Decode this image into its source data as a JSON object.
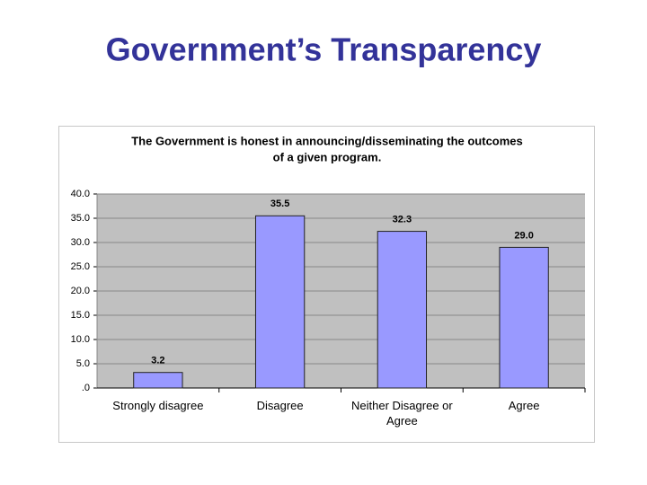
{
  "page_title": "Government’s Transparency",
  "chart_data": {
    "type": "bar",
    "title": [
      "The Government is honest in announcing/disseminating the outcomes",
      "of a given program."
    ],
    "categories": [
      "Strongly disagree",
      "Disagree",
      "Neither Disagree or Agree",
      "Agree"
    ],
    "values": [
      3.2,
      35.5,
      32.3,
      29.0
    ],
    "value_labels": [
      "3.2",
      "35.5",
      "32.3",
      "29.0"
    ],
    "color": "#9999ff",
    "ylim": [
      0,
      40
    ],
    "yticks": [
      {
        "value": 0,
        "label": ".0"
      },
      {
        "value": 5,
        "label": "5.0"
      },
      {
        "value": 10,
        "label": "10.0"
      },
      {
        "value": 15,
        "label": "15.0"
      },
      {
        "value": 20,
        "label": "20.0"
      },
      {
        "value": 25,
        "label": "25.0"
      },
      {
        "value": 30,
        "label": "30.0"
      },
      {
        "value": 35,
        "label": "35.0"
      },
      {
        "value": 40,
        "label": "40.0"
      }
    ],
    "grid": true
  }
}
